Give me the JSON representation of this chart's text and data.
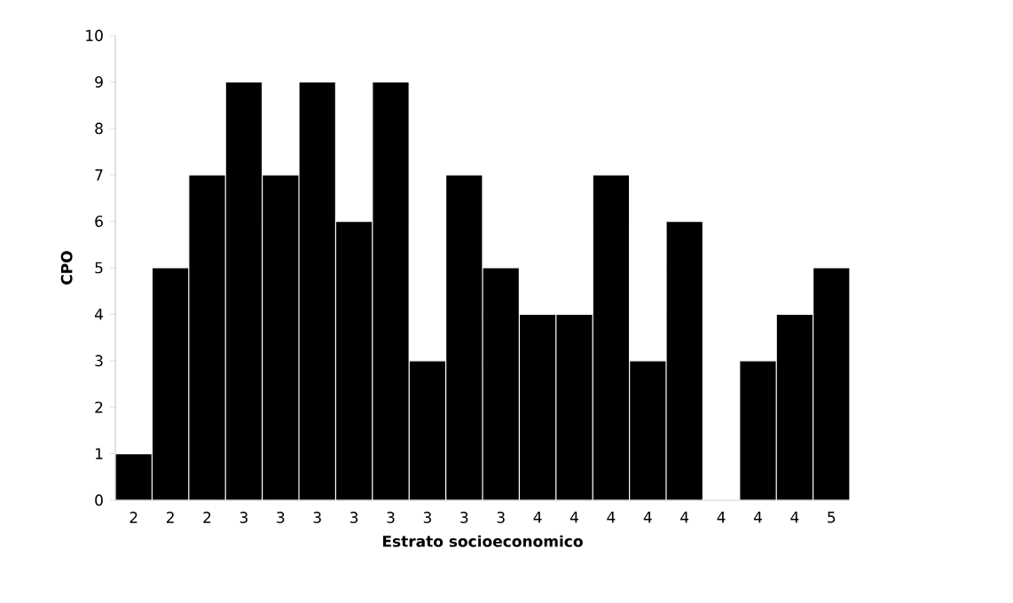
{
  "chart_data": {
    "type": "bar",
    "xlabel": "Estrato socioeconomico",
    "ylabel": "CPO",
    "categories": [
      "2",
      "2",
      "2",
      "3",
      "3",
      "3",
      "3",
      "3",
      "3",
      "3",
      "3",
      "4",
      "4",
      "4",
      "4",
      "4",
      "4",
      "4",
      "4",
      "5"
    ],
    "values": [
      1,
      5,
      7,
      9,
      7,
      9,
      6,
      9,
      3,
      7,
      5,
      4,
      4,
      7,
      3,
      6,
      0,
      3,
      4,
      5
    ],
    "color": "#000000",
    "ylim": [
      0,
      10
    ],
    "yticks": [
      0,
      1,
      2,
      3,
      4,
      5,
      6,
      7,
      8,
      9,
      10
    ],
    "grid": false
  }
}
